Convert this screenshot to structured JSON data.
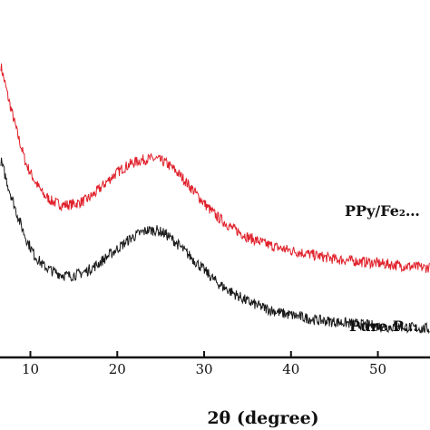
{
  "chart_data": {
    "type": "line",
    "title": "",
    "xlabel": "2θ (degree)",
    "ylabel": "",
    "xlim": [
      6.5,
      56
    ],
    "ylim": [
      0,
      100
    ],
    "x_ticks": [
      "10",
      "20",
      "30",
      "40",
      "50"
    ],
    "grid": false,
    "legend": "none (series labeled inline at right)",
    "series": [
      {
        "name": "PPy/Fe₂…",
        "color": "#e0202a",
        "points": [
          [
            6.6,
            86
          ],
          [
            7.5,
            76
          ],
          [
            8.5,
            66
          ],
          [
            9.5,
            57
          ],
          [
            10.5,
            52
          ],
          [
            11.5,
            48
          ],
          [
            12.5,
            46
          ],
          [
            13.5,
            45
          ],
          [
            14.5,
            45
          ],
          [
            15.5,
            45.5
          ],
          [
            16.5,
            46.5
          ],
          [
            17.5,
            48.5
          ],
          [
            18.5,
            51
          ],
          [
            19.5,
            53.5
          ],
          [
            20.5,
            55.5
          ],
          [
            21.5,
            57
          ],
          [
            22.5,
            58
          ],
          [
            23.5,
            58.5
          ],
          [
            24.5,
            58.5
          ],
          [
            25.5,
            57.5
          ],
          [
            26.5,
            55.5
          ],
          [
            27.5,
            53
          ],
          [
            28.5,
            50
          ],
          [
            29.5,
            47
          ],
          [
            30.5,
            44
          ],
          [
            31.5,
            41.5
          ],
          [
            33,
            38.5
          ],
          [
            35,
            35.5
          ],
          [
            37,
            33.5
          ],
          [
            39,
            32
          ],
          [
            41,
            31
          ],
          [
            43,
            30
          ],
          [
            45,
            29
          ],
          [
            47,
            28.5
          ],
          [
            49,
            28
          ],
          [
            51,
            27.5
          ],
          [
            53,
            27
          ],
          [
            55,
            26.5
          ],
          [
            56,
            26.5
          ]
        ]
      },
      {
        "name": "Pure P…",
        "color": "#1a1a1a",
        "points": [
          [
            6.6,
            58
          ],
          [
            7.5,
            50
          ],
          [
            8.5,
            42
          ],
          [
            9.5,
            35
          ],
          [
            10.5,
            30
          ],
          [
            11.5,
            27
          ],
          [
            12.5,
            25.5
          ],
          [
            13.5,
            24.5
          ],
          [
            14.5,
            24
          ],
          [
            15.5,
            24.5
          ],
          [
            16.5,
            25.5
          ],
          [
            17.5,
            27
          ],
          [
            18.5,
            29
          ],
          [
            19.5,
            31
          ],
          [
            20.5,
            33
          ],
          [
            21.5,
            35
          ],
          [
            22.5,
            36.5
          ],
          [
            23.5,
            37.5
          ],
          [
            24.5,
            37.5
          ],
          [
            25.5,
            36.5
          ],
          [
            26.5,
            34.5
          ],
          [
            27.5,
            32
          ],
          [
            28.5,
            29.5
          ],
          [
            29.5,
            27
          ],
          [
            30.5,
            24.5
          ],
          [
            31.5,
            22
          ],
          [
            33,
            19.5
          ],
          [
            35,
            16.5
          ],
          [
            37,
            14.5
          ],
          [
            39,
            13
          ],
          [
            41,
            12
          ],
          [
            43,
            11
          ],
          [
            45,
            10.5
          ],
          [
            47,
            10
          ],
          [
            49,
            9.5
          ],
          [
            51,
            9
          ],
          [
            53,
            9
          ],
          [
            55,
            8.5
          ],
          [
            56,
            8.5
          ]
        ]
      }
    ]
  }
}
